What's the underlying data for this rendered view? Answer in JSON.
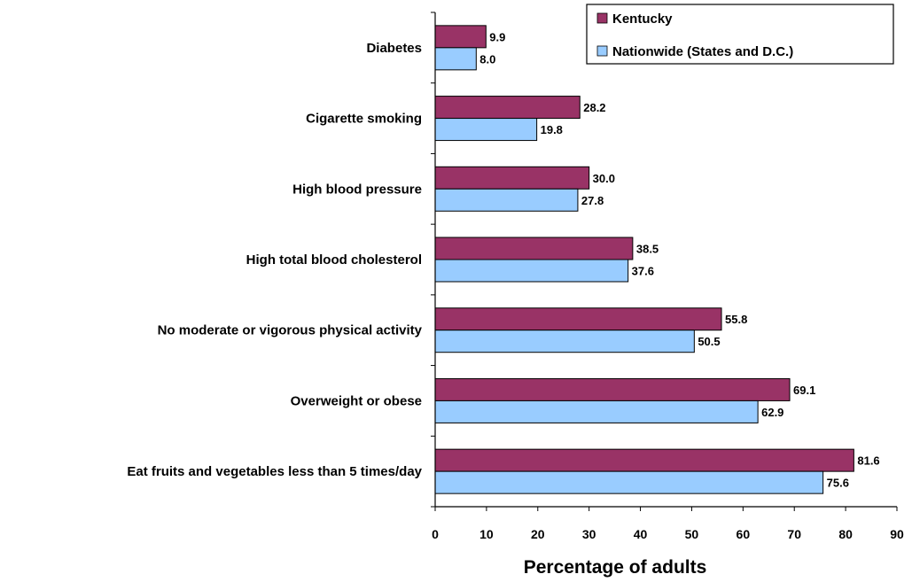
{
  "chart_data": {
    "type": "bar",
    "orientation": "horizontal",
    "categories": [
      "Diabetes",
      "Cigarette smoking",
      "High blood pressure",
      "High total blood cholesterol",
      "No moderate or vigorous physical activity",
      "Overweight or obese",
      "Eat fruits and vegetables less than 5 times/day"
    ],
    "series": [
      {
        "name": "Kentucky",
        "color": "#993366",
        "values": [
          9.9,
          28.2,
          30.0,
          38.5,
          55.8,
          69.1,
          81.6
        ],
        "labels": [
          "9.9",
          "28.2",
          "30.0",
          "38.5",
          "55.8",
          "69.1",
          "81.6"
        ]
      },
      {
        "name": "Nationwide (States and D.C.)",
        "color": "#99ccff",
        "values": [
          8.0,
          19.8,
          27.8,
          37.6,
          50.5,
          62.9,
          75.6
        ],
        "labels": [
          "8.0",
          "19.8",
          "27.8",
          "37.6",
          "50.5",
          "62.9",
          "75.6"
        ]
      }
    ],
    "xlabel": "Percentage of adults",
    "xlim": [
      0,
      90
    ],
    "xticks": [
      "0",
      "10",
      "20",
      "30",
      "40",
      "50",
      "60",
      "70",
      "80",
      "90"
    ],
    "grid": false,
    "legend_position": "top-right"
  }
}
